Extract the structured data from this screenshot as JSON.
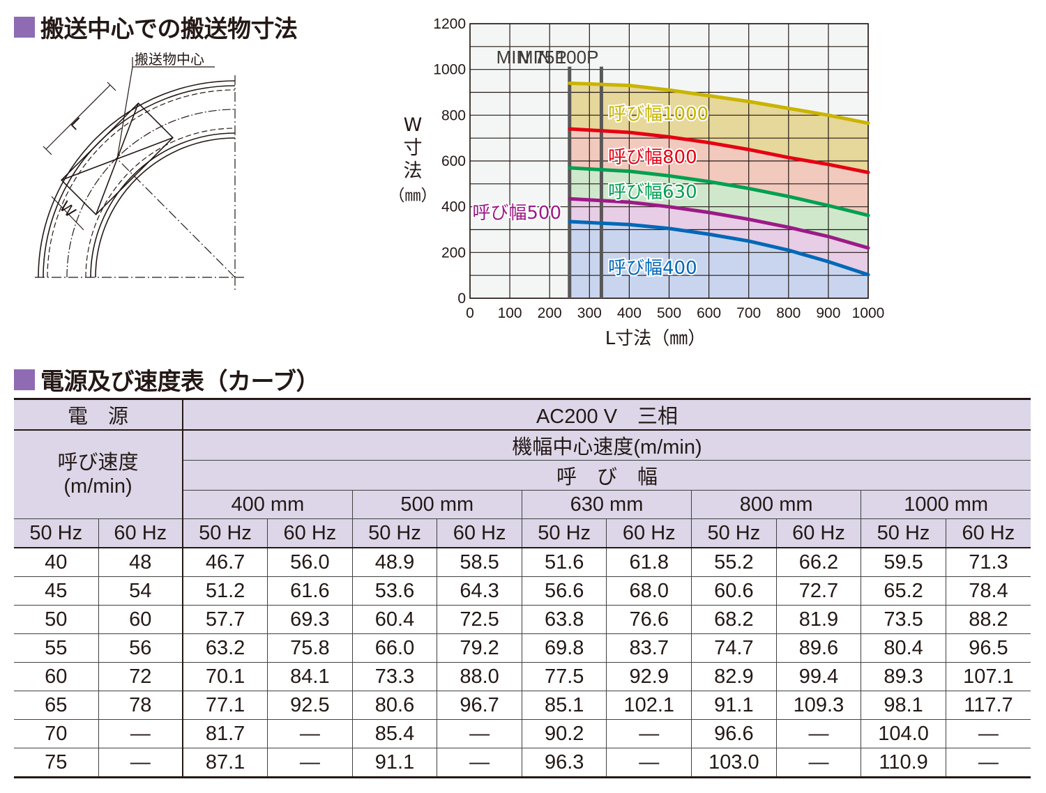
{
  "headings": {
    "section1": "搬送中心での搬送物寸法",
    "section2": "電源及び速度表（カーブ）"
  },
  "diagram": {
    "center_label": "搬送物中心",
    "L_label": "L",
    "W_label": "W"
  },
  "chart_data": {
    "type": "area",
    "xlabel": "L寸法（㎜）",
    "ylabel_chars": [
      "W",
      "寸",
      "法",
      "（㎜）"
    ],
    "xlim": [
      0,
      1000
    ],
    "ylim": [
      0,
      1200
    ],
    "xticks": [
      0,
      100,
      200,
      300,
      400,
      500,
      600,
      700,
      800,
      900,
      1000
    ],
    "yticks": [
      0,
      200,
      400,
      600,
      800,
      1000,
      1200
    ],
    "grid": true,
    "min_markers": [
      {
        "label": "MIN 75P",
        "x": 250
      },
      {
        "label": "MIN 100P",
        "x": 330
      }
    ],
    "series": [
      {
        "name": "呼び幅1000",
        "color": "#c9b400",
        "fill": "#e6d79a",
        "x": [
          250,
          400,
          500,
          600,
          700,
          800,
          900,
          1000
        ],
        "values": [
          940,
          930,
          910,
          885,
          860,
          830,
          800,
          765
        ]
      },
      {
        "name": "呼び幅800",
        "color": "#e50012",
        "fill": "#f2c9bd",
        "x": [
          250,
          400,
          500,
          600,
          700,
          800,
          900,
          1000
        ],
        "values": [
          740,
          725,
          705,
          680,
          650,
          615,
          585,
          550
        ]
      },
      {
        "name": "呼び幅630",
        "color": "#00a051",
        "fill": "#cfe8cc",
        "x": [
          250,
          400,
          500,
          600,
          700,
          800,
          900,
          1000
        ],
        "values": [
          570,
          555,
          535,
          510,
          480,
          445,
          405,
          362
        ]
      },
      {
        "name": "呼び幅500",
        "color": "#9c1a87",
        "fill": "#e7cde6",
        "x": [
          250,
          400,
          500,
          600,
          700,
          800,
          900,
          1000
        ],
        "values": [
          435,
          420,
          400,
          375,
          345,
          310,
          270,
          220
        ]
      },
      {
        "name": "呼び幅400",
        "color": "#0068b7",
        "fill": "#c9d5ee",
        "x": [
          250,
          400,
          500,
          600,
          700,
          800,
          900,
          1000
        ],
        "values": [
          335,
          322,
          305,
          280,
          250,
          210,
          160,
          103
        ]
      }
    ]
  },
  "table": {
    "power_label": "電　源",
    "power_value": "AC200 V　三相",
    "rated_speed_label": "呼び速度",
    "rated_speed_unit": "(m/min)",
    "center_speed_label": "機幅中心速度(m/min)",
    "width_label": "呼　び　幅",
    "widths": [
      "400 mm",
      "500 mm",
      "630 mm",
      "800 mm",
      "1000 mm"
    ],
    "hz": [
      "50 Hz",
      "60 Hz",
      "50 Hz",
      "60 Hz",
      "50 Hz",
      "60 Hz",
      "50 Hz",
      "60 Hz",
      "50 Hz",
      "60 Hz",
      "50 Hz",
      "60 Hz"
    ],
    "rows": [
      [
        "40",
        "48",
        "46.7",
        "56.0",
        "48.9",
        "58.5",
        "51.6",
        "61.8",
        "55.2",
        "66.2",
        "59.5",
        "71.3"
      ],
      [
        "45",
        "54",
        "51.2",
        "61.6",
        "53.6",
        "64.3",
        "56.6",
        "68.0",
        "60.6",
        "72.7",
        "65.2",
        "78.4"
      ],
      [
        "50",
        "60",
        "57.7",
        "69.3",
        "60.4",
        "72.5",
        "63.8",
        "76.6",
        "68.2",
        "81.9",
        "73.5",
        "88.2"
      ],
      [
        "55",
        "56",
        "63.2",
        "75.8",
        "66.0",
        "79.2",
        "69.8",
        "83.7",
        "74.7",
        "89.6",
        "80.4",
        "96.5"
      ],
      [
        "60",
        "72",
        "70.1",
        "84.1",
        "73.3",
        "88.0",
        "77.5",
        "92.9",
        "82.9",
        "99.4",
        "89.3",
        "107.1"
      ],
      [
        "65",
        "78",
        "77.1",
        "92.5",
        "80.6",
        "96.7",
        "85.1",
        "102.1",
        "91.1",
        "109.3",
        "98.1",
        "117.7"
      ],
      [
        "70",
        "—",
        "81.7",
        "—",
        "85.4",
        "—",
        "90.2",
        "—",
        "96.6",
        "—",
        "104.0",
        "—"
      ],
      [
        "75",
        "—",
        "87.1",
        "—",
        "91.1",
        "—",
        "96.3",
        "—",
        "103.0",
        "—",
        "110.9",
        "—"
      ]
    ]
  }
}
